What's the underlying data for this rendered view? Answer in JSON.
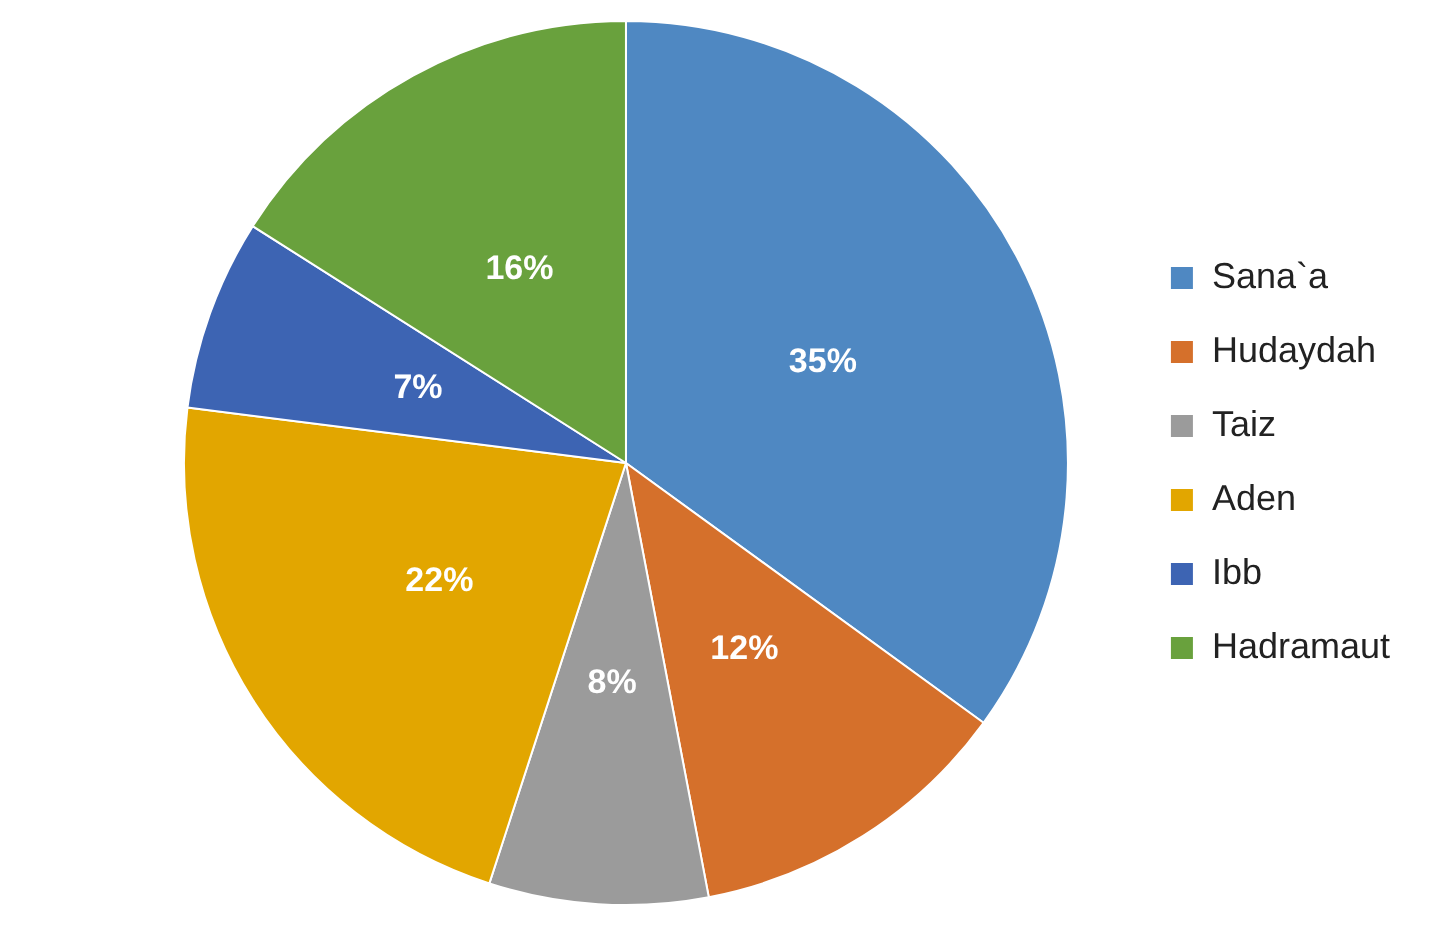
{
  "chart_data": {
    "type": "pie",
    "categories": [
      "Sana`a",
      "Hudaydah",
      "Taiz",
      "Aden",
      "Ibb",
      "Hadramaut"
    ],
    "values": [
      35,
      12,
      8,
      22,
      7,
      16
    ],
    "colors": [
      "#4f88c2",
      "#d5702b",
      "#9b9b9b",
      "#e2a600",
      "#3d64b3",
      "#69a13d"
    ],
    "value_labels": [
      "35%",
      "12%",
      "8%",
      "22%",
      "7%",
      "16%"
    ],
    "legend": "right"
  }
}
